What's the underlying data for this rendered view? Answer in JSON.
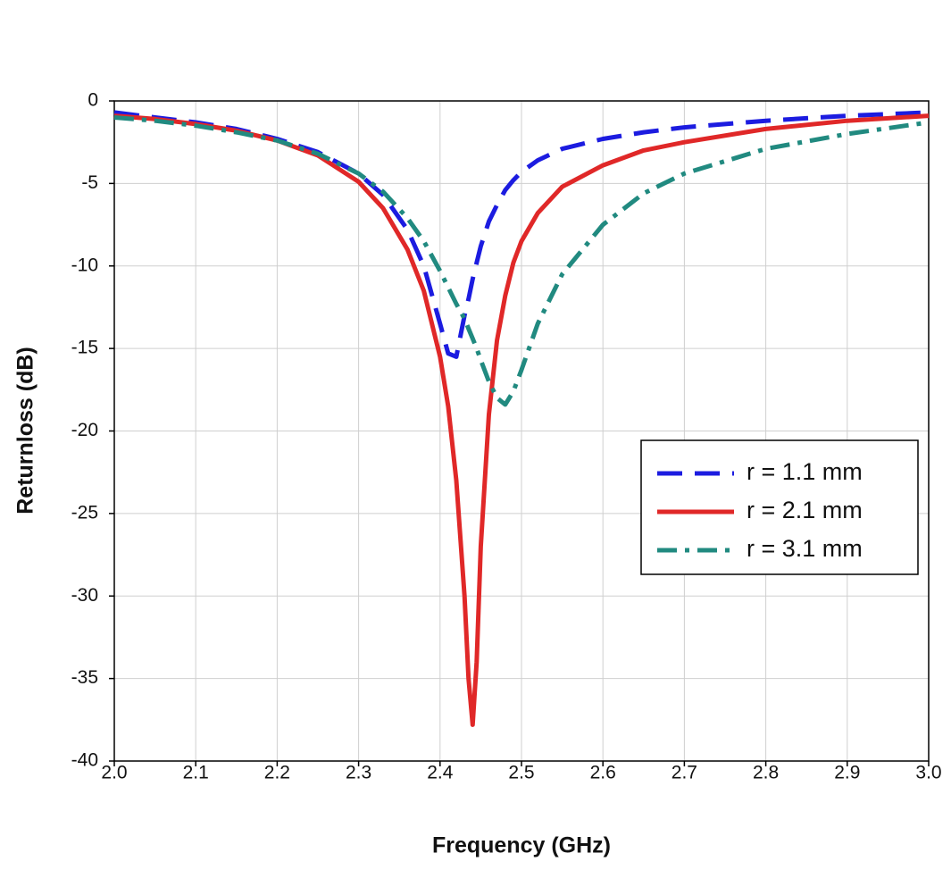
{
  "chart_data": {
    "type": "line",
    "x_label": "Frequency (GHz)",
    "y_label": "Returnloss (dB)",
    "x": [
      2.0,
      2.05,
      2.1,
      2.15,
      2.2,
      2.25,
      2.3,
      2.33,
      2.36,
      2.38,
      2.4,
      2.41,
      2.42,
      2.43,
      2.435,
      2.44,
      2.445,
      2.45,
      2.46,
      2.47,
      2.48,
      2.49,
      2.5,
      2.52,
      2.55,
      2.6,
      2.65,
      2.7,
      2.8,
      2.9,
      3.0
    ],
    "series": [
      {
        "name": "r = 1.1 mm",
        "color": "#1c1ce0",
        "dash": "dashed",
        "values": [
          -0.7,
          -1.0,
          -1.3,
          -1.7,
          -2.3,
          -3.1,
          -4.4,
          -5.7,
          -7.8,
          -10.0,
          -13.5,
          -15.3,
          -15.5,
          -13.0,
          -12.0,
          -10.8,
          -9.8,
          -8.8,
          -7.3,
          -6.3,
          -5.4,
          -4.8,
          -4.3,
          -3.6,
          -2.9,
          -2.3,
          -1.9,
          -1.6,
          -1.2,
          -0.9,
          -0.7
        ]
      },
      {
        "name": "r = 2.1 mm",
        "color": "#e02828",
        "dash": "solid",
        "values": [
          -0.9,
          -1.1,
          -1.4,
          -1.8,
          -2.4,
          -3.3,
          -4.9,
          -6.5,
          -9.0,
          -11.5,
          -15.5,
          -18.5,
          -23,
          -30,
          -35,
          -37.8,
          -34,
          -27,
          -19,
          -14.5,
          -11.8,
          -9.8,
          -8.5,
          -6.8,
          -5.2,
          -3.9,
          -3.0,
          -2.5,
          -1.7,
          -1.2,
          -0.9
        ]
      },
      {
        "name": "r = 3.1 mm",
        "color": "#218a80",
        "dash": "dashdot",
        "values": [
          -1.0,
          -1.2,
          -1.5,
          -1.9,
          -2.4,
          -3.2,
          -4.4,
          -5.5,
          -7.1,
          -8.5,
          -10.3,
          -11.3,
          -12.3,
          -13.2,
          -13.8,
          -14.4,
          -15.0,
          -15.7,
          -17.0,
          -18.0,
          -18.4,
          -17.6,
          -16.3,
          -13.5,
          -10.5,
          -7.5,
          -5.6,
          -4.4,
          -2.9,
          -2.0,
          -1.3
        ]
      }
    ],
    "xlim": [
      2.0,
      3.0
    ],
    "xticks": [
      {
        "value": 2.0,
        "label": "2.0"
      },
      2.1,
      2.2,
      2.3,
      2.4,
      2.5,
      2.6,
      2.7,
      2.8,
      2.9,
      {
        "value": 3.0,
        "label": "3.0"
      }
    ],
    "ylim": [
      -40,
      0
    ],
    "yticks": [
      0,
      -5,
      -10,
      -15,
      -20,
      -25,
      -30,
      -35,
      -40
    ],
    "grid": true,
    "legend": "right"
  }
}
